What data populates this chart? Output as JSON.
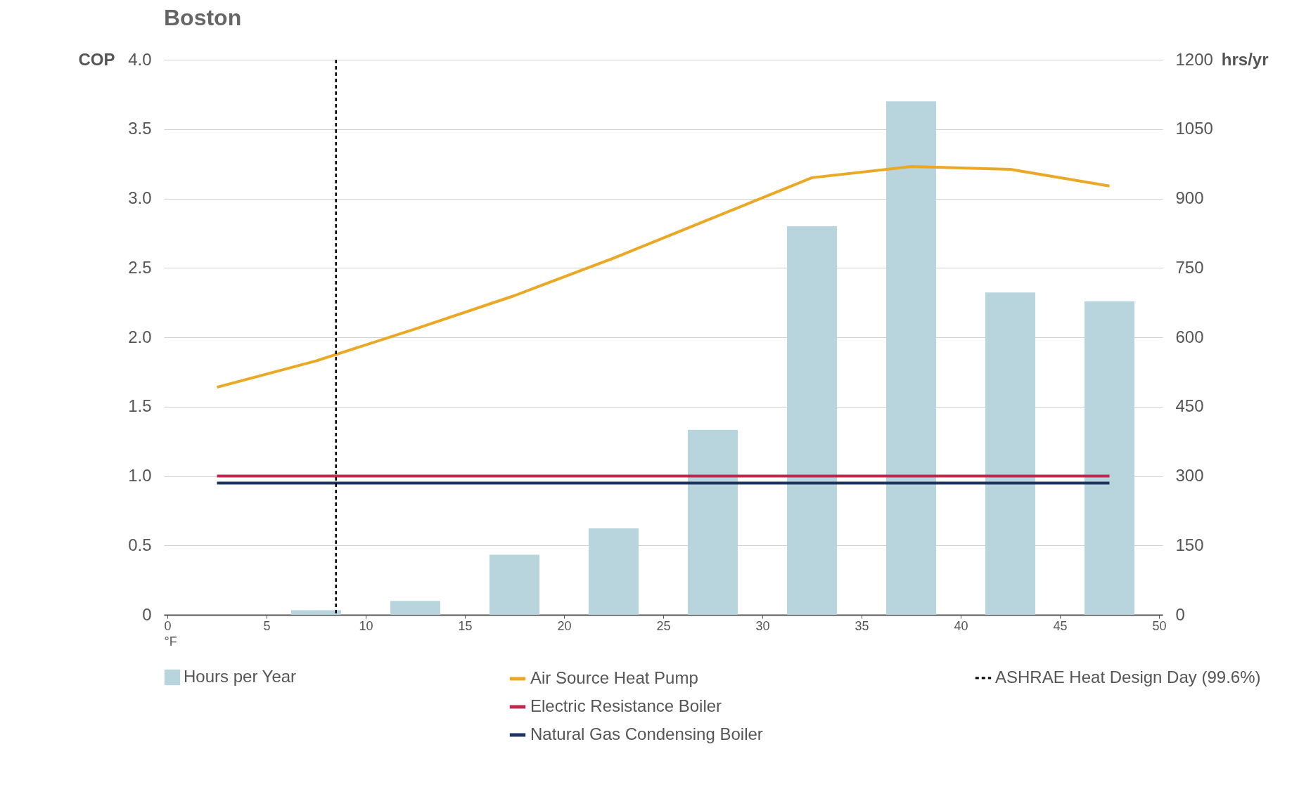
{
  "chart_data": {
    "type": "line",
    "title": "Boston",
    "xlabel": "°F",
    "ylabel": "COP",
    "y2label": "hrs/yr",
    "xlim": [
      0,
      50
    ],
    "xticks": [
      0,
      5,
      10,
      15,
      20,
      25,
      30,
      35,
      40,
      45,
      50
    ],
    "ylim": [
      0,
      4
    ],
    "yticks": [
      0,
      0.5,
      {
        "value": 1,
        "label": "1.0"
      },
      1.5,
      {
        "value": 2,
        "label": "2.0"
      },
      2.5,
      {
        "value": 3,
        "label": "3.0"
      },
      3.5,
      {
        "value": 4,
        "label": "4.0"
      }
    ],
    "y2lim": [
      0,
      1200
    ],
    "y2ticks": [
      0,
      150,
      300,
      450,
      600,
      750,
      900,
      1050,
      1200
    ],
    "grid": "y",
    "legend": "bottom left",
    "series": [
      {
        "name": "Air Source Heat Pump",
        "color": "#eaa824",
        "x": [
          2.5,
          7.5,
          12.5,
          17.5,
          22.5,
          27.5,
          32.5,
          37.5,
          42.5,
          47.5
        ],
        "values": [
          1.64,
          1.83,
          2.06,
          2.3,
          2.57,
          2.86,
          3.15,
          3.23,
          3.21,
          3.09
        ]
      },
      {
        "name": "Electric Resistance Boiler",
        "color": "#c0294f",
        "x": [
          2.5,
          47.5
        ],
        "values": [
          1.0,
          1.0
        ]
      },
      {
        "name": "Natural Gas Condensing Boiler",
        "color": "#1e3460",
        "x": [
          2.5,
          47.5
        ],
        "values": [
          0.95,
          0.95
        ]
      },
      {
        "name": "Hours per Year",
        "type": "bar",
        "axis": "y2",
        "color": "#b8d4dc",
        "x": [
          2.5,
          7.5,
          12.5,
          17.5,
          22.5,
          27.5,
          32.5,
          37.5,
          42.5,
          47.5
        ],
        "values": [
          0,
          10,
          30,
          130,
          187,
          400,
          840,
          1110,
          697,
          678
        ]
      }
    ],
    "ref_lines": [
      {
        "axis": "x",
        "value": 8.5,
        "label": "ASHRAE Heat Design Day (99.6%)",
        "color": "#000000",
        "line_style": "dashed"
      }
    ]
  }
}
